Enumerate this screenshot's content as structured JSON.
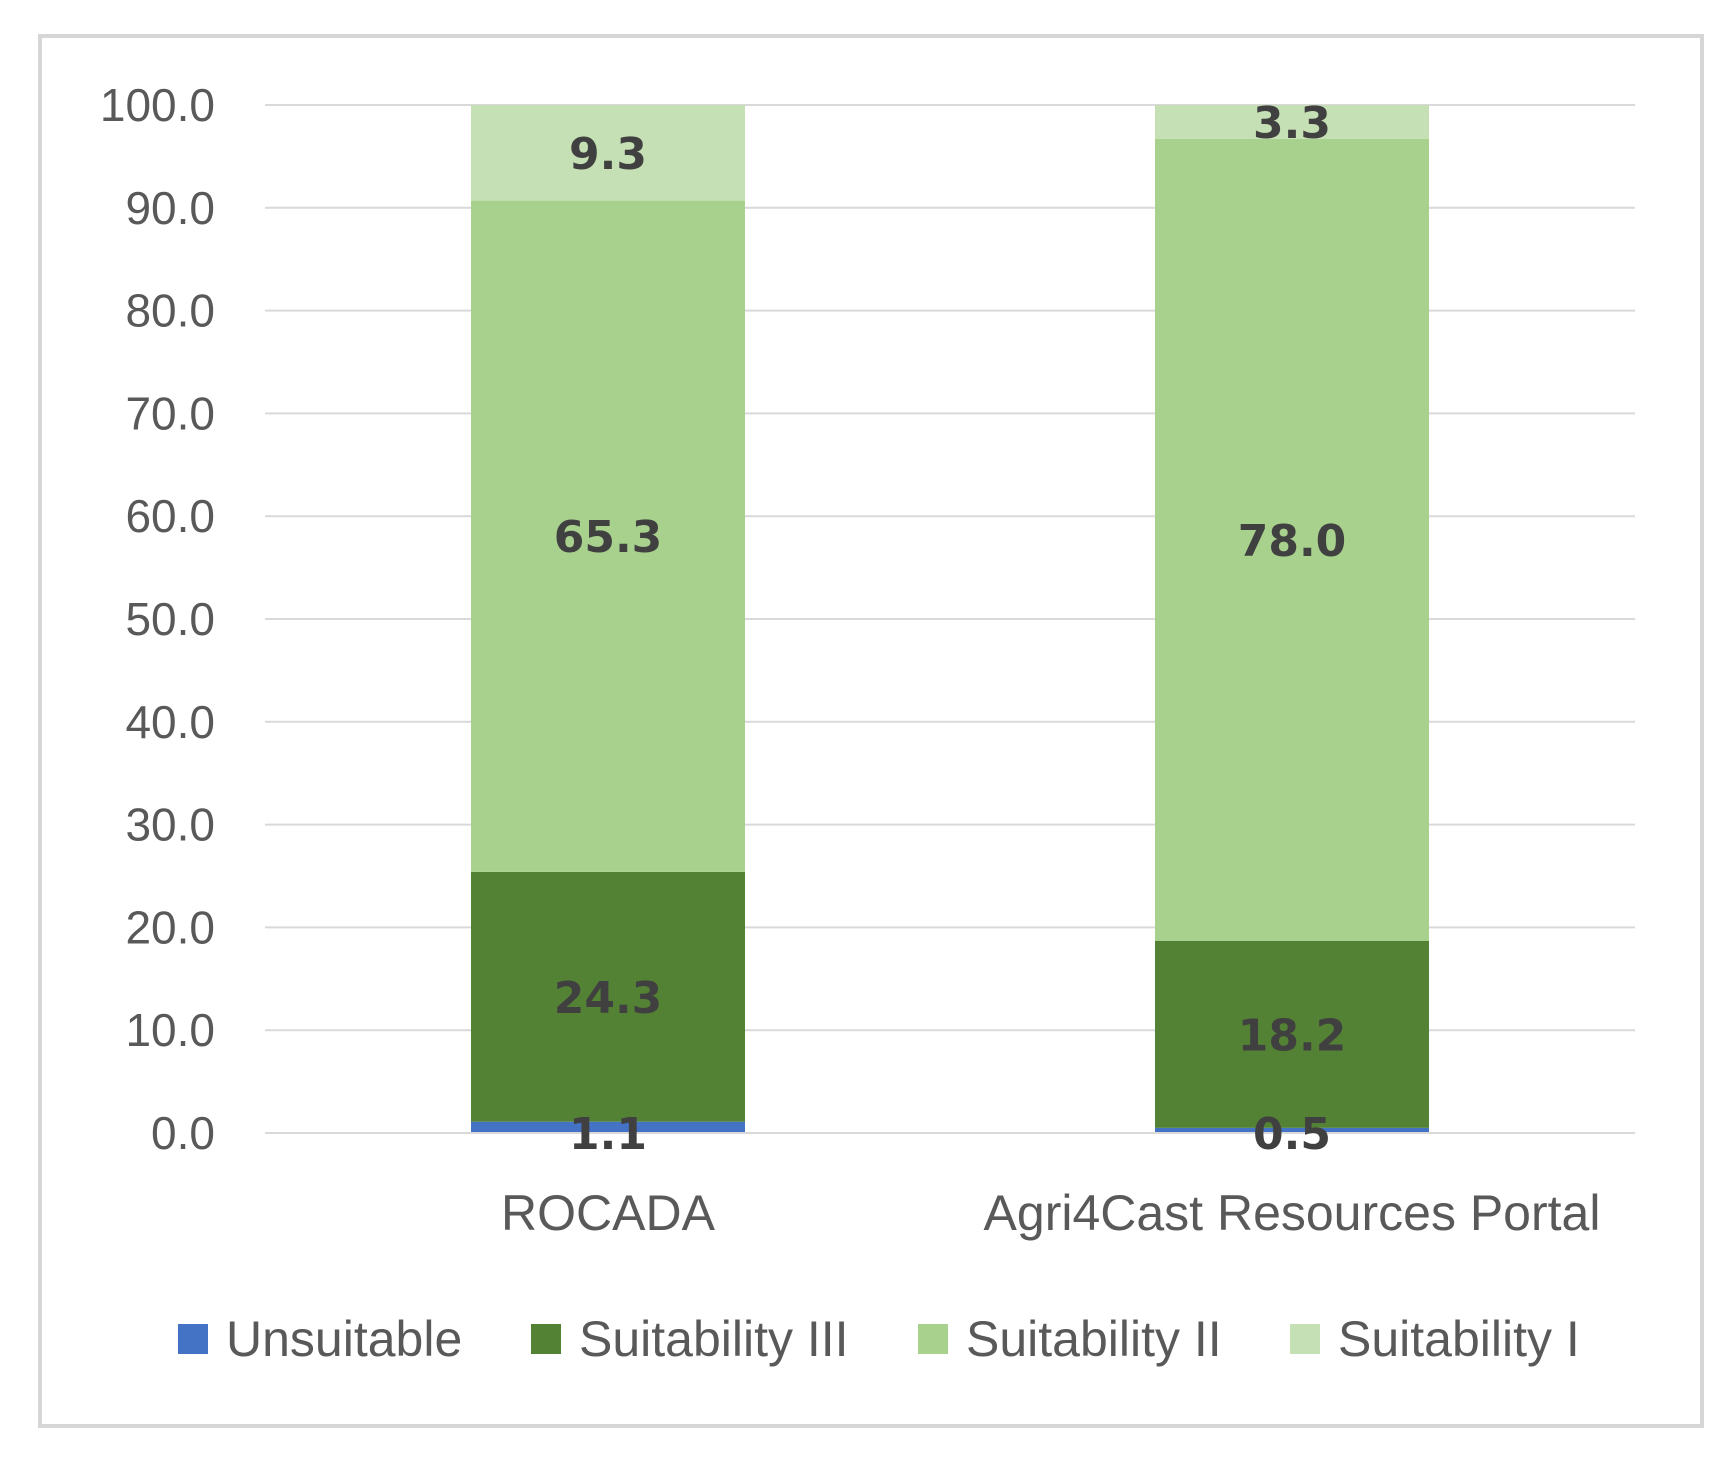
{
  "chart_data": {
    "type": "bar",
    "stacked": true,
    "title": "",
    "xlabel": "",
    "ylabel": "",
    "ylim": [
      0,
      100
    ],
    "yticks": [
      "0.0",
      "10.0",
      "20.0",
      "30.0",
      "40.0",
      "50.0",
      "60.0",
      "70.0",
      "80.0",
      "90.0",
      "100.0"
    ],
    "categories": [
      "ROCADA",
      "Agri4Cast Resources Portal"
    ],
    "series": [
      {
        "name": "Unsuitable",
        "color": "#4472c4",
        "values": [
          1.1,
          0.5
        ]
      },
      {
        "name": "Suitability III",
        "color": "#548235",
        "values": [
          24.3,
          18.2
        ]
      },
      {
        "name": "Suitability II",
        "color": "#a9d18e",
        "values": [
          65.3,
          78.0
        ]
      },
      {
        "name": "Suitability I",
        "color": "#c5e0b4",
        "values": [
          9.3,
          3.3
        ]
      }
    ],
    "labels": [
      [
        "1.1",
        "0.5"
      ],
      [
        "24.3",
        "18.2"
      ],
      [
        "65.3",
        "78.0"
      ],
      [
        "9.3",
        "3.3"
      ]
    ],
    "legend_position": "bottom",
    "grid": true
  }
}
